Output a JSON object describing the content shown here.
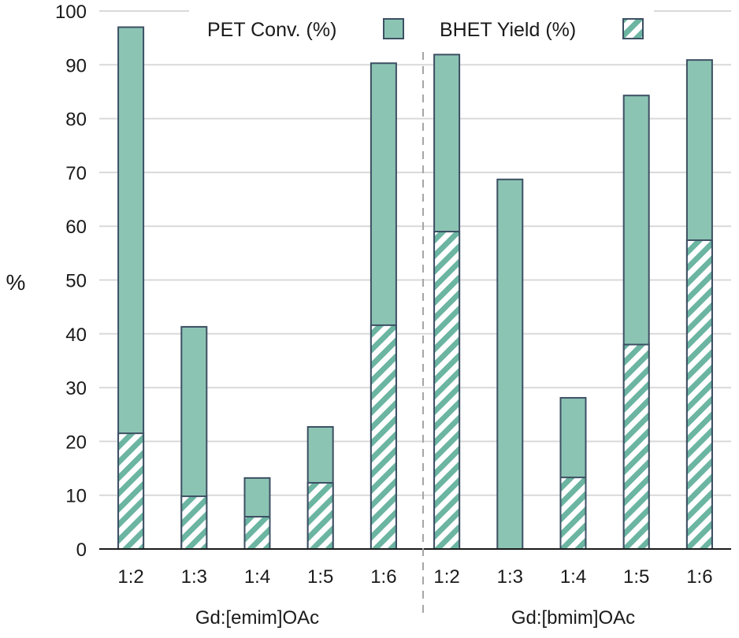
{
  "chart_data": {
    "type": "bar",
    "title": "",
    "ylabel": "%",
    "ylim": [
      0,
      100
    ],
    "yticks": [
      0,
      10,
      20,
      30,
      40,
      50,
      60,
      70,
      80,
      90,
      100
    ],
    "grid": true,
    "legend_position": "top",
    "categories": [
      "1:2",
      "1:3",
      "1:4",
      "1:5",
      "1:6",
      "1:2",
      "1:3",
      "1:4",
      "1:5",
      "1:6"
    ],
    "groups": [
      {
        "label": "Gd:[emim]OAc",
        "category_indices": [
          0,
          1,
          2,
          3,
          4
        ]
      },
      {
        "label": "Gd:[bmim]OAc",
        "category_indices": [
          5,
          6,
          7,
          8,
          9
        ]
      }
    ],
    "series": [
      {
        "name": "PET Conv. (%)",
        "pattern": "solid",
        "color": "#8cc4b4",
        "values": [
          97,
          41.3,
          13.2,
          22.7,
          90.3,
          91.9,
          68.7,
          28.1,
          84.3,
          90.9
        ]
      },
      {
        "name": "BHET Yield (%)",
        "pattern": "diagonal-hatch",
        "color": "#6bb5a2",
        "values": [
          21.5,
          9.8,
          6.0,
          12.3,
          41.6,
          59.0,
          0,
          13.3,
          38.0,
          57.4
        ]
      }
    ],
    "colors": {
      "bar_fill": "#8cc4b4",
      "bar_stroke": "#3d4f63",
      "hatch": "#6bb5a2",
      "grid": "#d9d9d9",
      "divider": "#a6a6a6"
    }
  }
}
